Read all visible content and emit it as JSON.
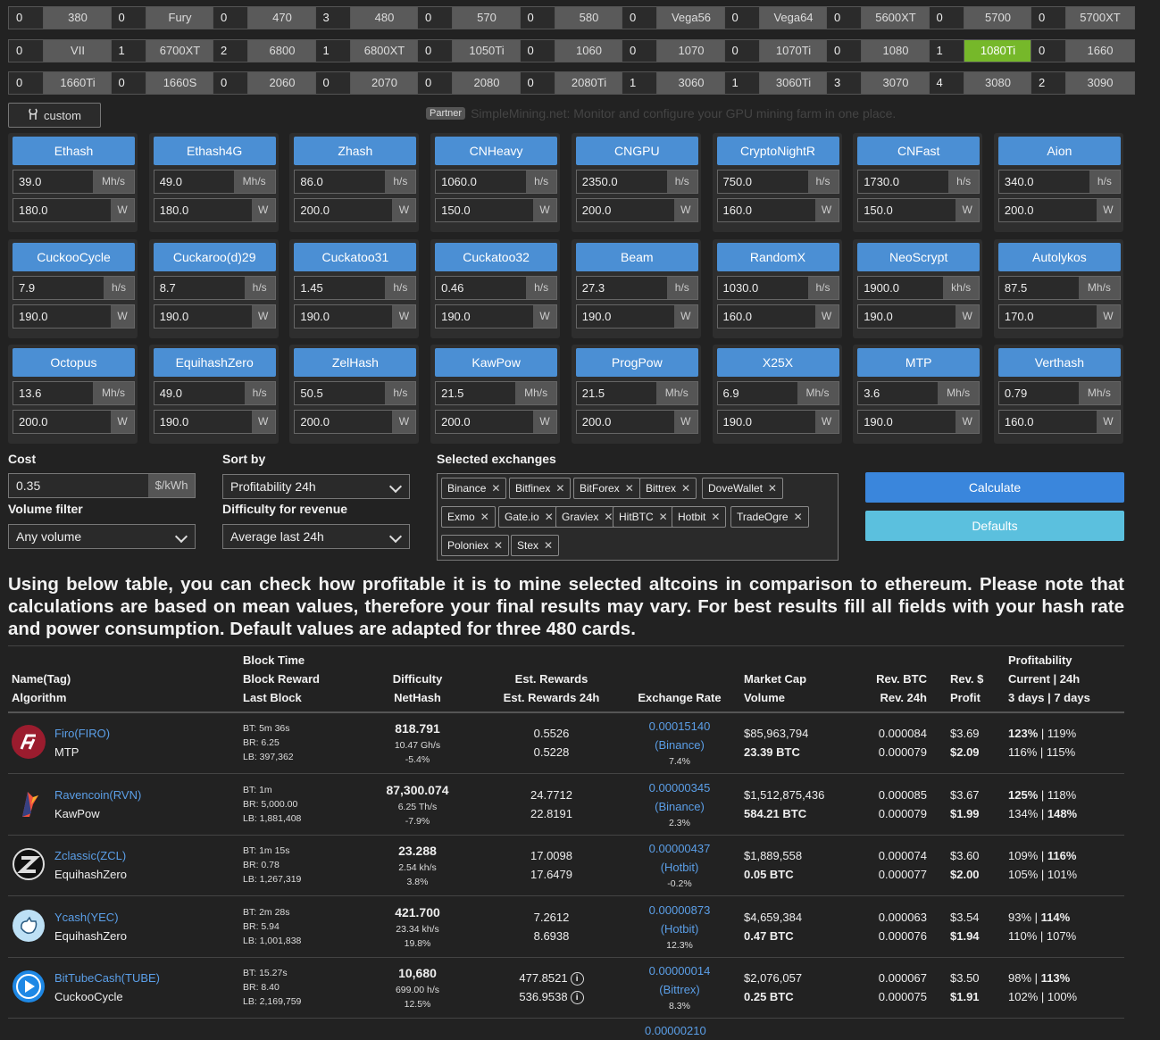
{
  "gpus": [
    {
      "count": "0",
      "name": "380"
    },
    {
      "count": "0",
      "name": "Fury"
    },
    {
      "count": "0",
      "name": "470"
    },
    {
      "count": "3",
      "name": "480"
    },
    {
      "count": "0",
      "name": "570"
    },
    {
      "count": "0",
      "name": "580"
    },
    {
      "count": "0",
      "name": "Vega56"
    },
    {
      "count": "0",
      "name": "Vega64"
    },
    {
      "count": "0",
      "name": "5600XT"
    },
    {
      "count": "0",
      "name": "5700"
    },
    {
      "count": "0",
      "name": "5700XT"
    },
    {
      "count": "0",
      "name": "VII"
    },
    {
      "count": "1",
      "name": "6700XT"
    },
    {
      "count": "2",
      "name": "6800"
    },
    {
      "count": "1",
      "name": "6800XT"
    },
    {
      "count": "0",
      "name": "1050Ti"
    },
    {
      "count": "0",
      "name": "1060"
    },
    {
      "count": "0",
      "name": "1070"
    },
    {
      "count": "0",
      "name": "1070Ti"
    },
    {
      "count": "0",
      "name": "1080"
    },
    {
      "count": "1",
      "name": "1080Ti",
      "selected": true
    },
    {
      "count": "0",
      "name": "1660"
    },
    {
      "count": "0",
      "name": "1660Ti"
    },
    {
      "count": "0",
      "name": "1660S"
    },
    {
      "count": "0",
      "name": "2060"
    },
    {
      "count": "0",
      "name": "2070"
    },
    {
      "count": "0",
      "name": "2080"
    },
    {
      "count": "0",
      "name": "2080Ti"
    },
    {
      "count": "1",
      "name": "3060"
    },
    {
      "count": "1",
      "name": "3060Ti"
    },
    {
      "count": "3",
      "name": "3070"
    },
    {
      "count": "4",
      "name": "3080"
    },
    {
      "count": "2",
      "name": "3090"
    }
  ],
  "custom_label": "custom",
  "partner": {
    "badge": "Partner",
    "text": "SimpleMining.net: Monitor and configure your GPU mining farm in one place."
  },
  "algos": [
    {
      "name": "Ethash",
      "hash": "39.0",
      "unit": "Mh/s",
      "power": "180.0"
    },
    {
      "name": "Ethash4G",
      "hash": "49.0",
      "unit": "Mh/s",
      "power": "180.0"
    },
    {
      "name": "Zhash",
      "hash": "86.0",
      "unit": "h/s",
      "power": "200.0"
    },
    {
      "name": "CNHeavy",
      "hash": "1060.0",
      "unit": "h/s",
      "power": "150.0"
    },
    {
      "name": "CNGPU",
      "hash": "2350.0",
      "unit": "h/s",
      "power": "200.0"
    },
    {
      "name": "CryptoNightR",
      "hash": "750.0",
      "unit": "h/s",
      "power": "160.0"
    },
    {
      "name": "CNFast",
      "hash": "1730.0",
      "unit": "h/s",
      "power": "150.0"
    },
    {
      "name": "Aion",
      "hash": "340.0",
      "unit": "h/s",
      "power": "200.0"
    },
    {
      "name": "CuckooCycle",
      "hash": "7.9",
      "unit": "h/s",
      "power": "190.0"
    },
    {
      "name": "Cuckaroo(d)29",
      "hash": "8.7",
      "unit": "h/s",
      "power": "190.0"
    },
    {
      "name": "Cuckatoo31",
      "hash": "1.45",
      "unit": "h/s",
      "power": "190.0"
    },
    {
      "name": "Cuckatoo32",
      "hash": "0.46",
      "unit": "h/s",
      "power": "190.0"
    },
    {
      "name": "Beam",
      "hash": "27.3",
      "unit": "h/s",
      "power": "190.0"
    },
    {
      "name": "RandomX",
      "hash": "1030.0",
      "unit": "h/s",
      "power": "160.0"
    },
    {
      "name": "NeoScrypt",
      "hash": "1900.0",
      "unit": "kh/s",
      "power": "190.0"
    },
    {
      "name": "Autolykos",
      "hash": "87.5",
      "unit": "Mh/s",
      "power": "170.0"
    },
    {
      "name": "Octopus",
      "hash": "13.6",
      "unit": "Mh/s",
      "power": "200.0"
    },
    {
      "name": "EquihashZero",
      "hash": "49.0",
      "unit": "h/s",
      "power": "190.0"
    },
    {
      "name": "ZelHash",
      "hash": "50.5",
      "unit": "h/s",
      "power": "200.0"
    },
    {
      "name": "KawPow",
      "hash": "21.5",
      "unit": "Mh/s",
      "power": "200.0"
    },
    {
      "name": "ProgPow",
      "hash": "21.5",
      "unit": "Mh/s",
      "power": "200.0"
    },
    {
      "name": "X25X",
      "hash": "6.9",
      "unit": "Mh/s",
      "power": "190.0"
    },
    {
      "name": "MTP",
      "hash": "3.6",
      "unit": "Mh/s",
      "power": "190.0"
    },
    {
      "name": "Verthash",
      "hash": "0.79",
      "unit": "Mh/s",
      "power": "160.0"
    }
  ],
  "power_unit": "W",
  "form": {
    "cost_label": "Cost",
    "cost_value": "0.35",
    "cost_unit": "$/kWh",
    "sort_label": "Sort by",
    "sort_value": "Profitability 24h",
    "volume_label": "Volume filter",
    "volume_value": "Any volume",
    "difficulty_label": "Difficulty for revenue",
    "difficulty_value": "Average last 24h",
    "exchanges_label": "Selected exchanges",
    "calculate": "Calculate",
    "defaults": "Defaults"
  },
  "exchanges": [
    "Binance",
    "Bitfinex",
    "BitForex",
    "Bittrex",
    "DoveWallet",
    "Exmo",
    "Gate.io",
    "Graviex",
    "HitBTC",
    "Hotbit",
    "TradeOgre",
    "Poloniex",
    "Stex"
  ],
  "intro": "Using below table, you can check how profitable it is to mine selected altcoins in comparison to ethereum. Please note that calculations are based on mean values, therefore your final results may vary. For best results fill all fields with your hash rate and power consumption. Default values are adapted for three 480 cards.",
  "table_headers": {
    "name": [
      "Name(Tag)",
      "Algorithm"
    ],
    "block": [
      "Block Time",
      "Block Reward",
      "Last Block"
    ],
    "difficulty": [
      "Difficulty",
      "NetHash"
    ],
    "rewards": [
      "Est. Rewards",
      "Est. Rewards 24h"
    ],
    "exchange": [
      "Exchange Rate"
    ],
    "market": [
      "Market Cap",
      "Volume"
    ],
    "revbtc": [
      "Rev. BTC",
      "Rev. 24h"
    ],
    "revusd": [
      "Rev. $",
      "Profit"
    ],
    "profit": [
      "Profitability",
      "Current | 24h",
      "3 days | 7 days"
    ]
  },
  "colors": {
    "accent": "#4b8fd4",
    "selected_gpu": "#76b82a",
    "defaults_btn": "#5bc0de",
    "link": "#5b9fe8"
  },
  "coins": [
    {
      "icon": "firo-icon",
      "name": "Firo(FIRO)",
      "algo": "MTP",
      "bt": "BT: 5m 36s",
      "br": "BR: 6.25",
      "lb": "LB: 397,362",
      "diff": "818.791",
      "nethash": "10.47 Gh/s",
      "diffchg": "-5.4%",
      "rew": "0.5526",
      "rew24": "0.5228",
      "rate": "0.00015140",
      "exch": "(Binance)",
      "ratechg": "7.4%",
      "mcap": "$85,963,794",
      "vol": "23.39 BTC",
      "rbtc": "0.000084",
      "rbtc24": "0.000079",
      "rusd": "$3.69",
      "profit": "$2.09",
      "p_cur": "123%",
      "p_24": "119%",
      "p_3": "116%",
      "p_7": "115%"
    },
    {
      "icon": "ravencoin-icon",
      "name": "Ravencoin(RVN)",
      "algo": "KawPow",
      "bt": "BT: 1m",
      "br": "BR: 5,000.00",
      "lb": "LB: 1,881,408",
      "diff": "87,300.074",
      "nethash": "6.25 Th/s",
      "diffchg": "-7.9%",
      "rew": "24.7712",
      "rew24": "22.8191",
      "rate": "0.00000345",
      "exch": "(Binance)",
      "ratechg": "2.3%",
      "mcap": "$1,512,875,436",
      "vol": "584.21 BTC",
      "rbtc": "0.000085",
      "rbtc24": "0.000079",
      "rusd": "$3.67",
      "profit": "$1.99",
      "p_cur": "125%",
      "p_24": "118%",
      "p_3": "134%",
      "p_7": "148%"
    },
    {
      "icon": "zclassic-icon",
      "name": "Zclassic(ZCL)",
      "algo": "EquihashZero",
      "bt": "BT: 1m 15s",
      "br": "BR: 0.78",
      "lb": "LB: 1,267,319",
      "diff": "23.288",
      "nethash": "2.54 kh/s",
      "diffchg": "3.8%",
      "rew": "17.0098",
      "rew24": "17.6479",
      "rate": "0.00000437",
      "exch": "(Hotbit)",
      "ratechg": "-0.2%",
      "mcap": "$1,889,558",
      "vol": "0.05 BTC",
      "rbtc": "0.000074",
      "rbtc24": "0.000077",
      "rusd": "$3.60",
      "profit": "$2.00",
      "p_cur": "109%",
      "p_24": "116%",
      "p_3": "105%",
      "p_7": "101%"
    },
    {
      "icon": "ycash-icon",
      "name": "Ycash(YEC)",
      "algo": "EquihashZero",
      "bt": "BT: 2m 28s",
      "br": "BR: 5.94",
      "lb": "LB: 1,001,838",
      "diff": "421.700",
      "nethash": "23.34 kh/s",
      "diffchg": "19.8%",
      "rew": "7.2612",
      "rew24": "8.6938",
      "rate": "0.00000873",
      "exch": "(Hotbit)",
      "ratechg": "12.3%",
      "mcap": "$4,659,384",
      "vol": "0.47 BTC",
      "rbtc": "0.000063",
      "rbtc24": "0.000076",
      "rusd": "$3.54",
      "profit": "$1.94",
      "p_cur": "93%",
      "p_24": "114%",
      "p_3": "110%",
      "p_7": "107%"
    },
    {
      "icon": "bittube-icon",
      "name": "BitTubeCash(TUBE)",
      "algo": "CuckooCycle",
      "bt": "BT: 15.27s",
      "br": "BR: 8.40",
      "lb": "LB: 2,169,759",
      "diff": "10,680",
      "nethash": "699.00 h/s",
      "diffchg": "12.5%",
      "rew": "477.8521",
      "rew24": "536.9538",
      "rate": "0.00000014",
      "exch": "(Bittrex)",
      "ratechg": "8.3%",
      "mcap": "$2,076,057",
      "vol": "0.25 BTC",
      "rbtc": "0.000067",
      "rbtc24": "0.000075",
      "rusd": "$3.50",
      "profit": "$1.91",
      "p_cur": "98%",
      "p_24": "113%",
      "p_3": "102%",
      "p_7": "100%"
    }
  ],
  "next_rate_partial": "0.00000210"
}
